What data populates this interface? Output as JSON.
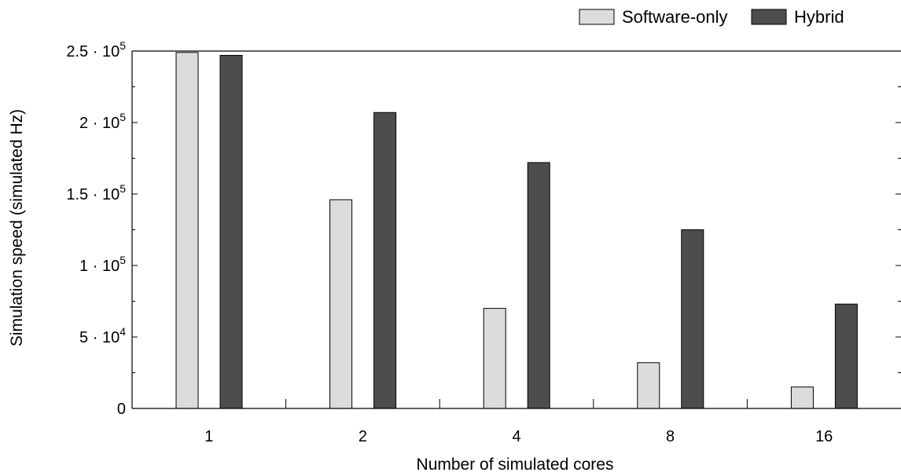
{
  "chart_data": {
    "type": "bar",
    "categories": [
      "1",
      "2",
      "4",
      "8",
      "16"
    ],
    "series": [
      {
        "name": "Software-only",
        "values": [
          249000,
          146000,
          70000,
          32000,
          15000
        ]
      },
      {
        "name": "Hybrid",
        "values": [
          247000,
          207000,
          172000,
          125000,
          73000
        ]
      }
    ],
    "title": "",
    "xlabel": "Number of simulated cores",
    "ylabel": "Simulation speed (simulated Hz)",
    "ylim": [
      0,
      250000
    ],
    "yticks": [
      {
        "value": 0,
        "mant": "0",
        "exp": ""
      },
      {
        "value": 50000,
        "mant": "5 · 10",
        "exp": "4"
      },
      {
        "value": 100000,
        "mant": "1 · 10",
        "exp": "5"
      },
      {
        "value": 150000,
        "mant": "1.5 · 10",
        "exp": "5"
      },
      {
        "value": 200000,
        "mant": "2 · 10",
        "exp": "5"
      },
      {
        "value": 250000,
        "mant": "2.5 · 10",
        "exp": "5"
      }
    ],
    "grid": false,
    "legend_position": "top-right",
    "colors": {
      "Software-only": "#dcdcdc",
      "Hybrid": "#4d4d4d"
    }
  }
}
